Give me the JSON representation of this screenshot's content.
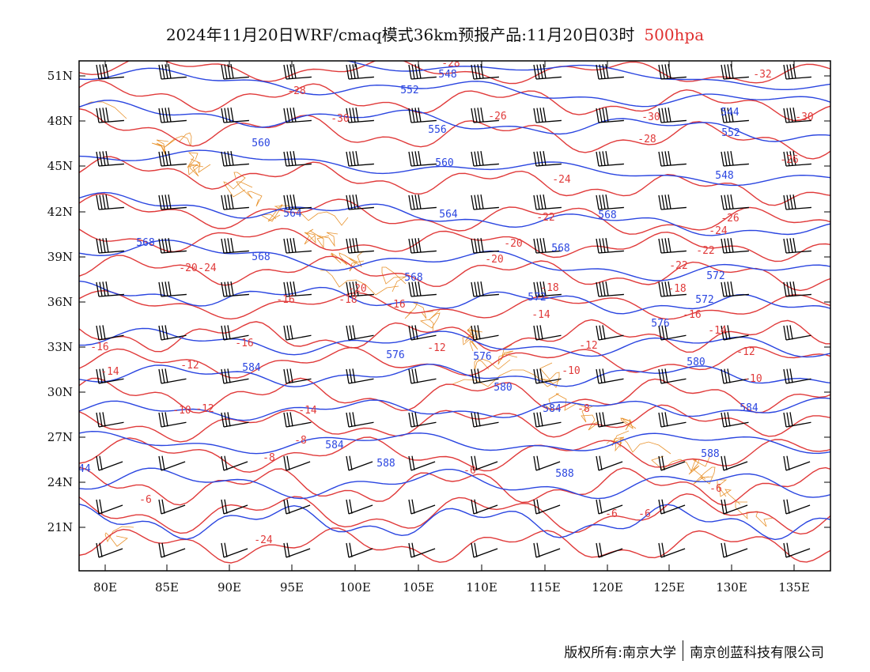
{
  "title": {
    "main": "2024年11月20日WRF/cmaq模式36km预报产品:11月20日03时",
    "level": "500hpa",
    "level_color": "#e03030"
  },
  "colors": {
    "height_contour": "#2a45e0",
    "temperature_contour": "#e03a3a",
    "boundary": "#e8932e",
    "wind_barb": "#000000"
  },
  "axes": {
    "lat_labels": [
      "51N",
      "48N",
      "45N",
      "42N",
      "39N",
      "36N",
      "33N",
      "30N",
      "27N",
      "24N",
      "21N"
    ],
    "lon_labels": [
      "80E",
      "85E",
      "90E",
      "95E",
      "100E",
      "105E",
      "110E",
      "115E",
      "120E",
      "125E",
      "130E",
      "135E"
    ]
  },
  "height_labels": [
    "548",
    "552",
    "556",
    "560",
    "560",
    "564",
    "564",
    "568",
    "568",
    "568",
    "568",
    "572",
    "572",
    "572",
    "576",
    "576",
    "576",
    "580",
    "580",
    "584",
    "584",
    "584",
    "584",
    "588",
    "588",
    "588",
    "548",
    "544",
    "552",
    "568",
    "44"
  ],
  "temperature_labels": [
    "-28",
    "-28",
    "-30",
    "-30",
    "-32",
    "-30",
    "-28",
    "-26",
    "-26",
    "-24",
    "-22",
    "-22",
    "-24",
    "-26",
    "-24",
    "-20",
    "-20",
    "-22",
    "-20",
    "-18",
    "-18",
    "-18",
    "-16",
    "-16",
    "-16",
    "-16",
    "-14",
    "-14",
    "-14",
    "-12",
    "-12",
    "-12",
    "-12",
    "-10",
    "-10",
    "-10",
    "-8",
    "-8",
    "-8",
    "-6",
    "-6",
    "-6",
    "-6",
    "-6",
    "-20",
    "-16",
    "-14",
    "-12",
    "-24"
  ],
  "footer": {
    "copyright": "版权所有:南京大学",
    "company": "南京创蓝科技有限公司"
  }
}
